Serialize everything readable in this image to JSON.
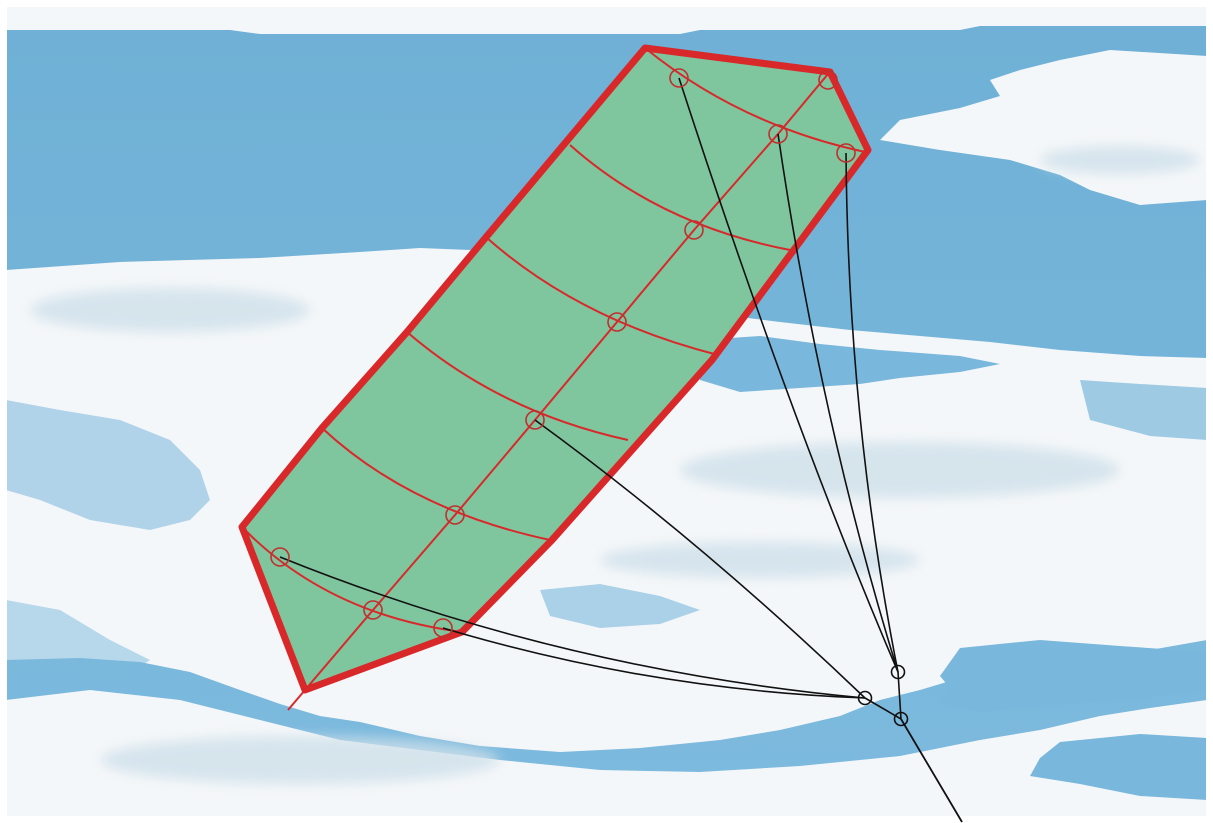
{
  "colors": {
    "sky_blue": "#74b4d8",
    "sky_deep": "#5aa3cc",
    "cloud_white": "#f4f7f9",
    "cloud_shadow": "#dbe7ee",
    "kite_fill": "#7fc59e",
    "kite_outline": "#d9282a",
    "kite_ribs": "#d9282a",
    "tether_lines": "#111111"
  },
  "components": {
    "canopy": "kite-canopy",
    "ribs": "chordwise-ribs",
    "spine": "spanwise-spine",
    "nodes": "attachment-nodes",
    "bridle": "bridle-lines",
    "tether": "main-tether"
  }
}
